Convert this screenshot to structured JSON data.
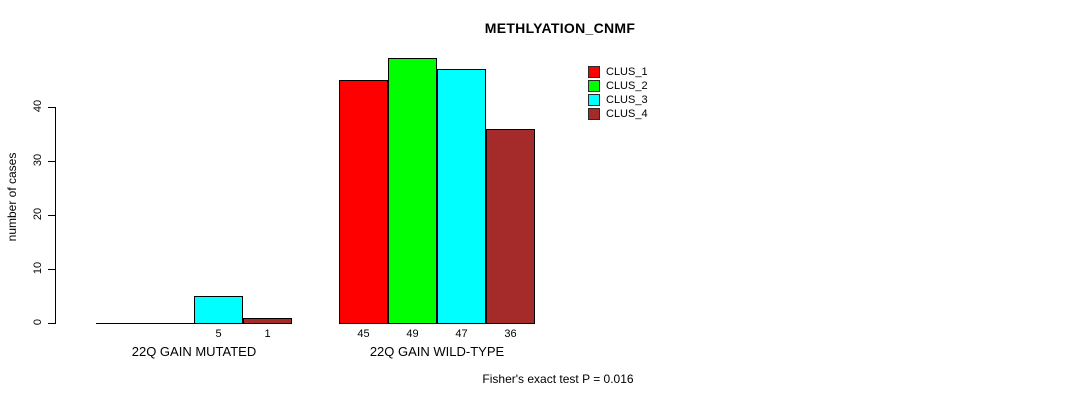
{
  "chart_data": {
    "type": "bar",
    "title": "METHLYATION_CNMF",
    "ylabel": "number of cases",
    "xlabel": "",
    "categories": [
      "22Q GAIN MUTATED",
      "22Q GAIN WILD-TYPE"
    ],
    "series": [
      {
        "name": "CLUS_1",
        "color": "#ff0000",
        "values": [
          0,
          45
        ]
      },
      {
        "name": "CLUS_2",
        "color": "#00ff00",
        "values": [
          0,
          49
        ]
      },
      {
        "name": "CLUS_3",
        "color": "#00ffff",
        "values": [
          5,
          47
        ]
      },
      {
        "name": "CLUS_4",
        "color": "#a52a2a",
        "values": [
          1,
          36
        ]
      }
    ],
    "bar_value_labels": [
      [
        "",
        "",
        "5",
        "1"
      ],
      [
        "45",
        "49",
        "47",
        "36"
      ]
    ],
    "yticks": [
      0,
      10,
      20,
      30,
      40
    ],
    "ylim": [
      0,
      40
    ],
    "grid": false,
    "legend_position": "top-right",
    "annotation": "Fisher's exact test P = 0.016",
    "axis_color": "#000000"
  }
}
